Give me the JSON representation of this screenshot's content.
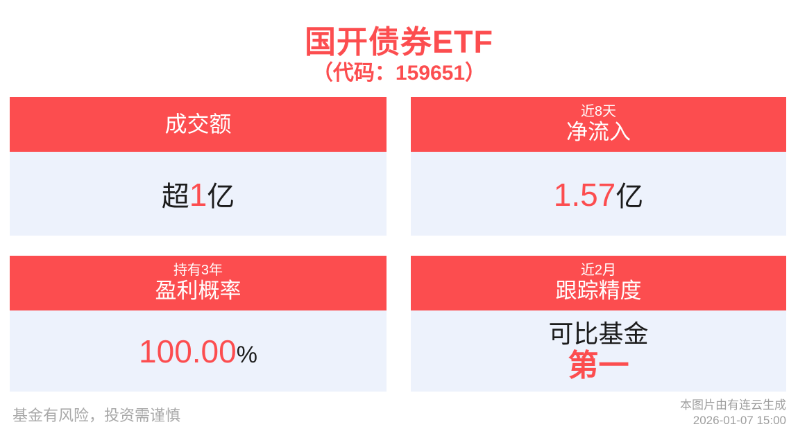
{
  "page": {
    "title": "国开债券ETF",
    "subtitle": "（代码：159651）"
  },
  "cards": [
    {
      "header_main": "成交额",
      "value_prefix": "超",
      "value_highlight": "1",
      "value_suffix": "亿"
    },
    {
      "header_small": "近8天",
      "header_main": "净流入",
      "value_highlight": "1.57",
      "value_suffix": "亿"
    },
    {
      "header_small": "持有3年",
      "header_main": "盈利概率",
      "value_highlight": "100.00",
      "value_suffix": "%"
    },
    {
      "header_small": "近2月",
      "header_main": "跟踪精度",
      "value_line1": "可比基金",
      "value_line2": "第一"
    }
  ],
  "footer": {
    "disclaimer": "基金有风险，投资需谨慎",
    "credit": "本图片由有连云生成",
    "timestamp": "2026-01-07 15:00"
  },
  "colors": {
    "accent_red": "#fc4d4f",
    "card_body_bg": "#edf2fc",
    "text_dark": "#1c1c1c",
    "muted_gray": "#a8a8a8"
  }
}
